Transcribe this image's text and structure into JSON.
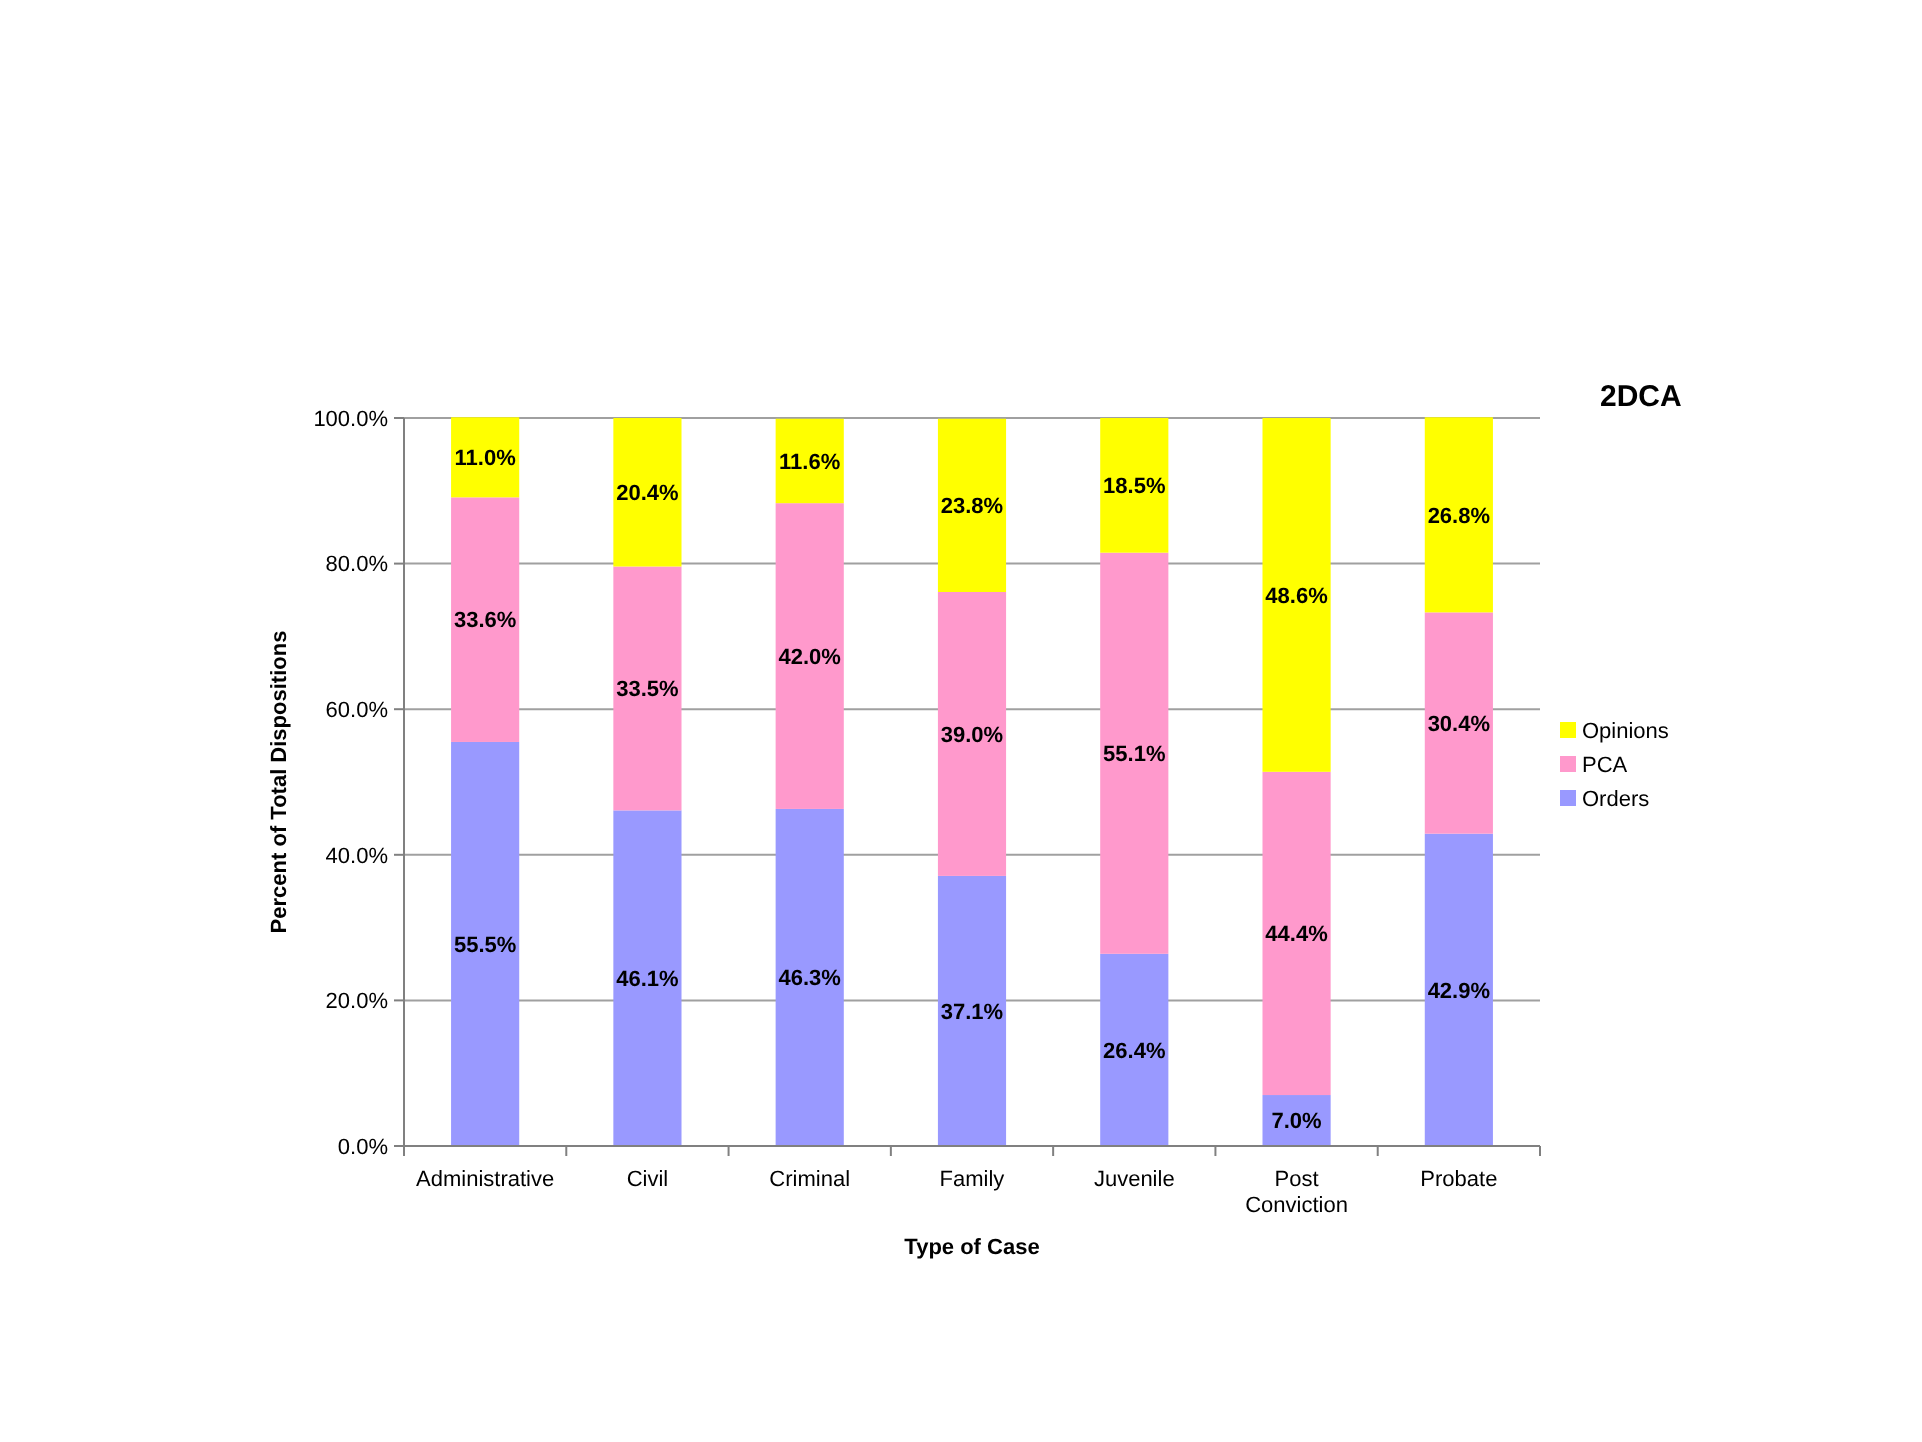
{
  "chart_data": {
    "type": "bar",
    "title": "2DCA",
    "xlabel": "Type of Case",
    "ylabel": "Percent of Total Dispositions",
    "stacked": true,
    "legend": "right",
    "grid": "y",
    "categories": [
      "Administrative",
      "Civil",
      "Criminal",
      "Family",
      "Juvenile",
      "Post Conviction",
      "Probate"
    ],
    "ylim": [
      0,
      100
    ],
    "yticks": [
      {
        "value": 0,
        "label": "0.0%"
      },
      {
        "value": 20,
        "label": "20.0%"
      },
      {
        "value": 40,
        "label": "40.0%"
      },
      {
        "value": 60,
        "label": "60.0%"
      },
      {
        "value": 80,
        "label": "80.0%"
      },
      {
        "value": 100,
        "label": "100.0%"
      }
    ],
    "series": [
      {
        "name": "Orders",
        "color": "#9999ff",
        "values": [
          55.5,
          46.1,
          46.3,
          37.1,
          26.4,
          7.0,
          42.9
        ],
        "value_labels": [
          "55.5%",
          "46.1%",
          "46.3%",
          "37.1%",
          "26.4%",
          "7.0%",
          "42.9%"
        ]
      },
      {
        "name": "PCA",
        "color": "#ff99cc",
        "values": [
          33.6,
          33.5,
          42.0,
          39.0,
          55.1,
          44.4,
          30.4
        ],
        "value_labels": [
          "33.6%",
          "33.5%",
          "42.0%",
          "39.0%",
          "55.1%",
          "44.4%",
          "30.4%"
        ]
      },
      {
        "name": "Opinions",
        "color": "#ffff00",
        "values": [
          11.0,
          20.4,
          11.6,
          23.8,
          18.5,
          48.6,
          26.8
        ],
        "value_labels": [
          "11.0%",
          "20.4%",
          "11.6%",
          "23.8%",
          "18.5%",
          "48.6%",
          "26.8%"
        ]
      }
    ]
  }
}
